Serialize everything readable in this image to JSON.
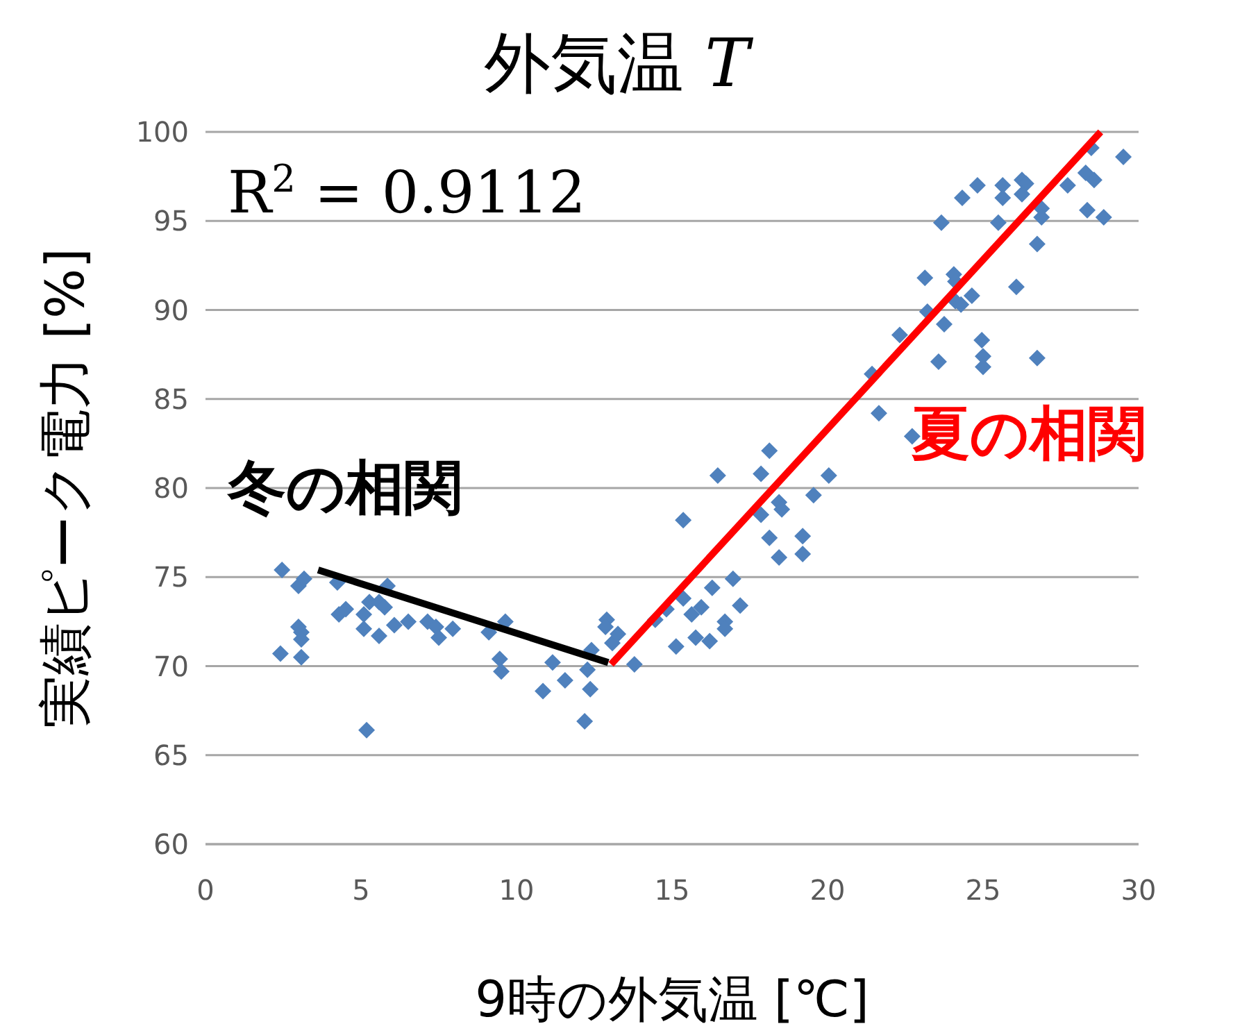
{
  "chart_data": {
    "type": "scatter",
    "title": "外気温 *T*",
    "xlabel": "9時の外気温 [℃]",
    "ylabel": "実績ピーク電力 [%]",
    "annotations": [
      "R$^{2}$ = 0.9112"
    ],
    "xlim": [
      0,
      30
    ],
    "ylim": [
      60,
      100
    ],
    "xticks": [
      0,
      5,
      10,
      15,
      20,
      25,
      30
    ],
    "yticks": [
      60,
      65,
      70,
      75,
      80,
      85,
      90,
      95,
      100
    ],
    "grid": "y",
    "marker": "diamond",
    "series": [
      {
        "color": "#4f81bd",
        "x": [
          2.46,
          2.99,
          3.17,
          2.41,
          2.99,
          3.08,
          3.08,
          3.08,
          4.24,
          4.29,
          4.51,
          5.09,
          5.09,
          5.27,
          5.58,
          5.76,
          5.85,
          5.58,
          6.07,
          6.52,
          7.14,
          7.41,
          7.5,
          7.95,
          5.18,
          9.11,
          9.64,
          9.46,
          9.51,
          10.85,
          11.16,
          11.56,
          12.19,
          12.28,
          12.41,
          12.37,
          12.9,
          12.86,
          13.08,
          13.26,
          13.79,
          18.13,
          16.47,
          17.86,
          20.04,
          18.44,
          18.53,
          17.86,
          19.55,
          15.36,
          18.13,
          19.2,
          18.44,
          19.2,
          16.96,
          16.29,
          15.36,
          15.94,
          15.63,
          17.19,
          14.82,
          14.46,
          16.7,
          16.7,
          15.76,
          16.21,
          15.13,
          29.51,
          28.48,
          28.3,
          28.57,
          26.25,
          26.38,
          27.72,
          24.82,
          25.63,
          25.63,
          26.25,
          24.33,
          26.88,
          26.88,
          28.35,
          28.88,
          23.66,
          25.49,
          26.74,
          23.13,
          24.06,
          24.11,
          26.07,
          24.64,
          24.11,
          24.29,
          23.21,
          23.75,
          22.32,
          24.96,
          23.57,
          25.0,
          25.0,
          26.74,
          21.43,
          21.65,
          22.72
        ],
        "values": [
          75.4,
          74.5,
          74.9,
          70.7,
          72.2,
          71.9,
          71.5,
          70.5,
          74.7,
          72.9,
          73.2,
          72.9,
          72.1,
          73.6,
          73.6,
          73.3,
          74.5,
          71.7,
          72.3,
          72.5,
          72.5,
          72.2,
          71.6,
          72.1,
          66.4,
          71.9,
          72.5,
          70.4,
          69.7,
          68.6,
          70.2,
          69.2,
          66.9,
          69.8,
          70.9,
          68.7,
          72.6,
          72.2,
          71.3,
          71.8,
          70.1,
          82.1,
          80.7,
          80.8,
          80.7,
          79.2,
          78.8,
          78.5,
          79.6,
          78.2,
          77.2,
          77.3,
          76.1,
          76.3,
          74.9,
          74.4,
          73.8,
          73.3,
          72.9,
          73.4,
          73.2,
          72.6,
          72.5,
          72.1,
          71.6,
          71.4,
          71.1,
          98.6,
          99.1,
          97.7,
          97.3,
          97.3,
          97.1,
          97.0,
          97.0,
          97.0,
          96.3,
          96.5,
          96.3,
          95.7,
          95.2,
          95.6,
          95.2,
          94.9,
          94.9,
          93.7,
          91.8,
          92.0,
          91.6,
          91.3,
          90.8,
          90.5,
          90.3,
          89.9,
          89.2,
          88.6,
          88.3,
          87.1,
          87.4,
          86.8,
          87.3,
          86.4,
          84.2,
          82.9
        ]
      },
      {
        "type": "line",
        "marker": "none",
        "name": "冬の相関",
        "color": "#000000",
        "x": [
          3.62,
          12.95
        ],
        "values": [
          75.4,
          70.2
        ]
      },
      {
        "type": "line",
        "marker": "none",
        "name": "夏の相関",
        "color": "#ff0000",
        "x": [
          13.04,
          28.78
        ],
        "values": [
          70.1,
          100
        ]
      }
    ]
  }
}
